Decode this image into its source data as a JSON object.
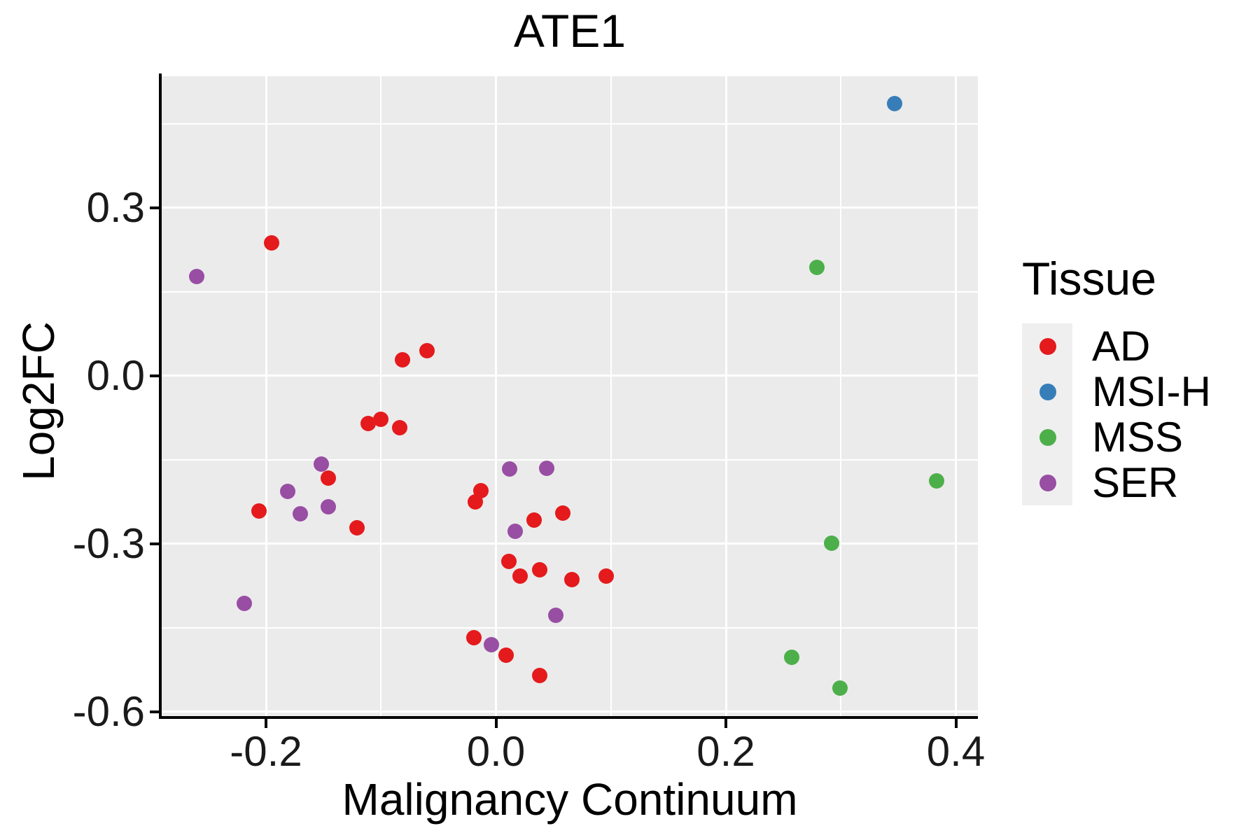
{
  "chart_data": {
    "type": "scatter",
    "title": "ATE1",
    "xlabel": "Malignancy Continuum",
    "ylabel": "Log2FC",
    "legend": {
      "title": "Tissue",
      "position": "right"
    },
    "axes": {
      "x_tick_labels": [
        "-0.2",
        "0.0",
        "0.2",
        "0.4"
      ],
      "x_tick_values": [
        -0.2,
        0.0,
        0.2,
        0.4
      ],
      "x_minor_values": [
        -0.1,
        0.1,
        0.3
      ],
      "y_tick_labels": [
        "0.3",
        "0.0",
        "-0.3",
        "-0.6"
      ],
      "y_tick_values": [
        0.3,
        0.0,
        -0.3,
        -0.6
      ],
      "y_minor_values": [
        0.45,
        0.15,
        -0.15,
        -0.45
      ],
      "xlim": [
        -0.291,
        0.419
      ],
      "ylim": [
        -0.608,
        0.535
      ],
      "grid": true
    },
    "style": {
      "panel_bg": "#EBEBEB",
      "grid_color": "#FFFFFF",
      "axis_color": "#000000",
      "text_color": "#1a1a1a",
      "legend_key_bg": "#EFEFEF"
    },
    "series": [
      {
        "name": "AD",
        "color": "#E41A1C",
        "points": [
          [
            -0.195,
            0.237
          ],
          [
            -0.081,
            0.028
          ],
          [
            -0.06,
            0.045
          ],
          [
            -0.111,
            -0.085
          ],
          [
            -0.1,
            -0.078
          ],
          [
            -0.084,
            -0.093
          ],
          [
            -0.146,
            -0.183
          ],
          [
            -0.206,
            -0.241
          ],
          [
            -0.121,
            -0.271
          ],
          [
            -0.013,
            -0.205
          ],
          [
            -0.018,
            -0.225
          ],
          [
            0.033,
            -0.258
          ],
          [
            0.058,
            -0.245
          ],
          [
            0.011,
            -0.331
          ],
          [
            0.021,
            -0.358
          ],
          [
            0.038,
            -0.346
          ],
          [
            0.066,
            -0.364
          ],
          [
            0.096,
            -0.358
          ],
          [
            -0.019,
            -0.468
          ],
          [
            0.009,
            -0.499
          ],
          [
            0.038,
            -0.535
          ]
        ]
      },
      {
        "name": "MSI-H",
        "color": "#377EB8",
        "points": [
          [
            0.347,
            0.486
          ]
        ]
      },
      {
        "name": "MSS",
        "color": "#4DAF4A",
        "points": [
          [
            0.279,
            0.193
          ],
          [
            0.383,
            -0.188
          ],
          [
            0.292,
            -0.299
          ],
          [
            0.257,
            -0.503
          ],
          [
            0.299,
            -0.558
          ]
        ]
      },
      {
        "name": "SER",
        "color": "#984EA3",
        "points": [
          [
            -0.26,
            0.177
          ],
          [
            -0.152,
            -0.158
          ],
          [
            -0.181,
            -0.206
          ],
          [
            -0.17,
            -0.247
          ],
          [
            -0.146,
            -0.234
          ],
          [
            -0.219,
            -0.406
          ],
          [
            0.012,
            -0.167
          ],
          [
            0.044,
            -0.165
          ],
          [
            0.017,
            -0.278
          ],
          [
            0.052,
            -0.428
          ],
          [
            -0.004,
            -0.48
          ]
        ]
      }
    ]
  }
}
